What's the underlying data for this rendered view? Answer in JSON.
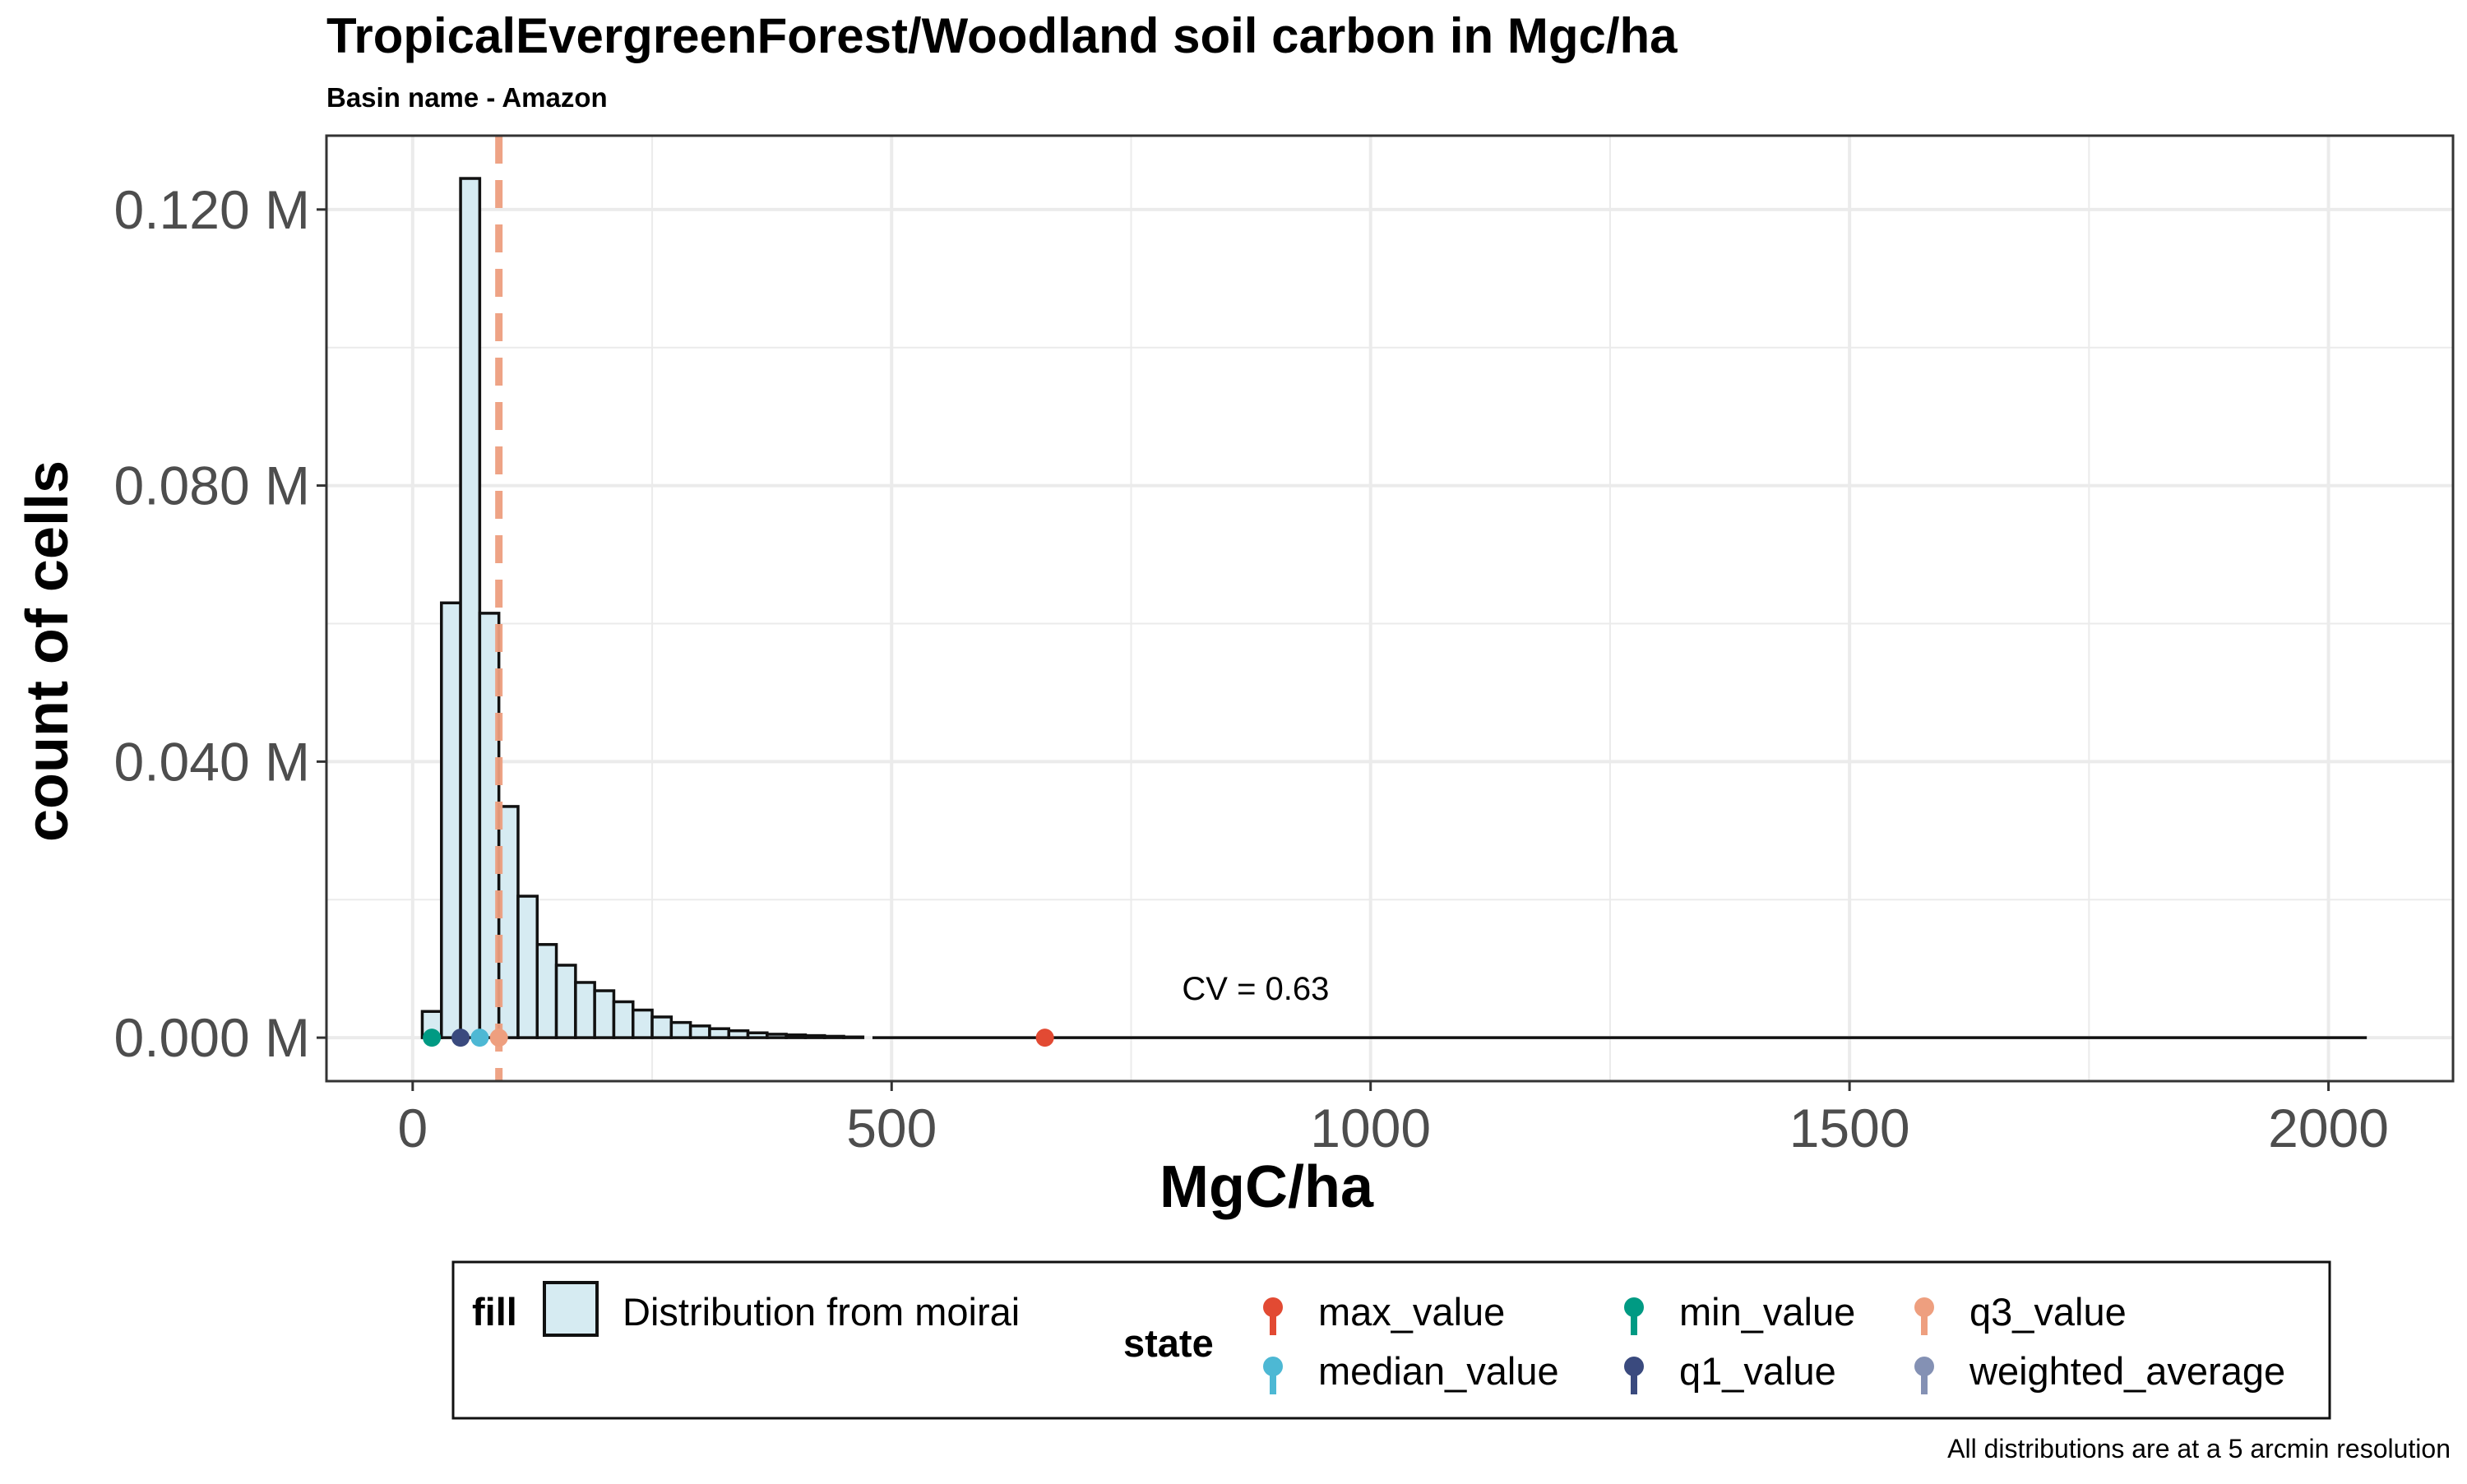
{
  "chart_data": {
    "type": "bar",
    "title": "TropicalEvergreenForest/Woodland soil carbon in Mgc/ha",
    "subtitle": "Basin name - Amazon",
    "xlabel": "MgC/ha",
    "ylabel": "count of cells",
    "xlim": [
      -90,
      2130
    ],
    "ylim": [
      -0.0063,
      0.1307
    ],
    "x_ticks": [
      0,
      500,
      1000,
      1500,
      2000
    ],
    "x_tick_labels": [
      "0",
      "500",
      "1000",
      "1500",
      "2000"
    ],
    "y_ticks": [
      0,
      0.04,
      0.08,
      0.12
    ],
    "y_tick_labels": [
      "0.000 M",
      "0.040 M",
      "0.080 M",
      "0.120 M"
    ],
    "grid": true,
    "bin_width": 20,
    "bins": [
      {
        "x": 20,
        "value": 0.0038
      },
      {
        "x": 40,
        "value": 0.063
      },
      {
        "x": 60,
        "value": 0.1245
      },
      {
        "x": 80,
        "value": 0.0615
      },
      {
        "x": 100,
        "value": 0.0335
      },
      {
        "x": 120,
        "value": 0.0205
      },
      {
        "x": 140,
        "value": 0.0135
      },
      {
        "x": 160,
        "value": 0.0105
      },
      {
        "x": 180,
        "value": 0.008
      },
      {
        "x": 200,
        "value": 0.0068
      },
      {
        "x": 220,
        "value": 0.0052
      },
      {
        "x": 240,
        "value": 0.004
      },
      {
        "x": 260,
        "value": 0.003
      },
      {
        "x": 280,
        "value": 0.0022
      },
      {
        "x": 300,
        "value": 0.0017
      },
      {
        "x": 320,
        "value": 0.0013
      },
      {
        "x": 340,
        "value": 0.001
      },
      {
        "x": 360,
        "value": 0.0007
      },
      {
        "x": 380,
        "value": 0.0005
      },
      {
        "x": 400,
        "value": 0.0004
      },
      {
        "x": 420,
        "value": 0.0003
      },
      {
        "x": 440,
        "value": 0.0002
      },
      {
        "x": 460,
        "value": 0.0001
      }
    ],
    "baseline_x_range": [
      480,
      2040
    ],
    "points": [
      {
        "state": "min_value",
        "x": 20,
        "y": 0
      },
      {
        "state": "q1_value",
        "x": 50,
        "y": 0
      },
      {
        "state": "median_value",
        "x": 70,
        "y": 0
      },
      {
        "state": "q3_value",
        "x": 90,
        "y": 0
      },
      {
        "state": "max_value",
        "x": 660,
        "y": 0
      }
    ],
    "vline": {
      "state": "weighted_average",
      "x": 90,
      "style": "dashed"
    },
    "annotation": {
      "text": "CV = 0.63",
      "x": 880,
      "y": 0.0055
    },
    "legend": {
      "placement": "bottom",
      "fill_title": "fill",
      "fill_label": "Distribution from moirai",
      "state_title": "state",
      "state_items": [
        {
          "label": "max_value",
          "color": "#e24a33"
        },
        {
          "label": "min_value",
          "color": "#009a83"
        },
        {
          "label": "q3_value",
          "color": "#ee9f7f"
        },
        {
          "label": "median_value",
          "color": "#4db8d4"
        },
        {
          "label": "q1_value",
          "color": "#3a4a7e"
        },
        {
          "label": "weighted_average",
          "color": "#8491b4"
        }
      ]
    },
    "caption": "All distributions are at a 5 arcmin resolution"
  },
  "colors": {
    "bar_fill": "#d6ebf2",
    "bar_stroke": "#111111",
    "vline": "#ee9f7f",
    "grid": "#ebebeb",
    "max_value": "#e24a33",
    "min_value": "#009a83",
    "q3_value": "#ee9f7f",
    "median_value": "#4db8d4",
    "q1_value": "#3a4a7e",
    "weighted_average": "#8491b4"
  }
}
